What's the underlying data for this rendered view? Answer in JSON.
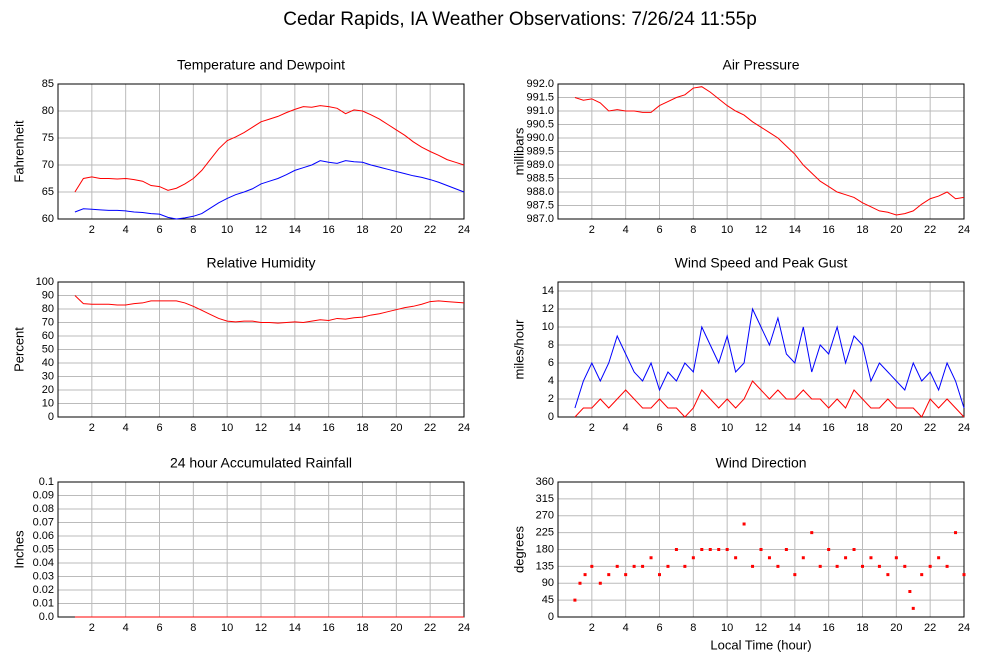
{
  "title": "Cedar Rapids, IA Weather Observations: 7/26/24 11:55p",
  "chart_data": [
    {
      "type": "line",
      "title": "Temperature and Dewpoint",
      "ylabel": "Fahrenheit",
      "x": [
        1,
        1.5,
        2,
        2.5,
        3,
        3.5,
        4,
        4.5,
        5,
        5.5,
        6,
        6.5,
        7,
        7.5,
        8,
        8.5,
        9,
        9.5,
        10,
        10.5,
        11,
        11.5,
        12,
        12.5,
        13,
        13.5,
        14,
        14.5,
        15,
        15.5,
        16,
        16.5,
        17,
        17.5,
        18,
        18.5,
        19,
        19.5,
        20,
        20.5,
        21,
        21.5,
        22,
        22.5,
        23,
        23.5,
        24
      ],
      "series": [
        {
          "color": "#ff0000",
          "values": [
            65,
            67.5,
            67.8,
            67.5,
            67.5,
            67.4,
            67.5,
            67.3,
            67,
            66.2,
            66,
            65.3,
            65.7,
            66.5,
            67.5,
            69,
            71,
            73,
            74.5,
            75.2,
            76,
            77,
            78,
            78.5,
            79,
            79.7,
            80.3,
            80.8,
            80.7,
            81,
            80.8,
            80.5,
            79.5,
            80.2,
            80,
            79.3,
            78.5,
            77.5,
            76.5,
            75.5,
            74.3,
            73.3,
            72.5,
            71.8,
            71,
            70.5,
            70
          ]
        },
        {
          "color": "#0000ff",
          "values": [
            61.3,
            61.9,
            61.8,
            61.7,
            61.6,
            61.6,
            61.5,
            61.3,
            61.2,
            61,
            60.9,
            60.3,
            60,
            60.2,
            60.5,
            61,
            62,
            63,
            63.8,
            64.5,
            65,
            65.6,
            66.5,
            67,
            67.5,
            68.2,
            69,
            69.5,
            70,
            70.8,
            70.5,
            70.3,
            70.8,
            70.6,
            70.5,
            70,
            69.6,
            69.2,
            68.8,
            68.4,
            68,
            67.7,
            67.3,
            66.8,
            66.2,
            65.6,
            65
          ]
        }
      ],
      "xlim": [
        0,
        24
      ],
      "xticks": [
        2,
        4,
        6,
        8,
        10,
        12,
        14,
        16,
        18,
        20,
        22,
        24
      ],
      "ylim": [
        60,
        85
      ],
      "yticks": [
        60,
        65,
        70,
        75,
        80,
        85
      ],
      "grid": true
    },
    {
      "type": "line",
      "title": "Air Pressure",
      "ylabel": "millibars",
      "x": [
        1,
        1.5,
        2,
        2.5,
        3,
        3.5,
        4,
        4.5,
        5,
        5.5,
        6,
        6.5,
        7,
        7.5,
        8,
        8.5,
        9,
        9.5,
        10,
        10.5,
        11,
        11.5,
        12,
        12.5,
        13,
        13.5,
        14,
        14.5,
        15,
        15.5,
        16,
        16.5,
        17,
        17.5,
        18,
        18.5,
        19,
        19.5,
        20,
        20.5,
        21,
        21.5,
        22,
        22.5,
        23,
        23.5,
        24
      ],
      "series": [
        {
          "color": "#ff0000",
          "values": [
            991.5,
            991.4,
            991.45,
            991.3,
            991.0,
            991.05,
            991.0,
            991.0,
            990.95,
            990.95,
            991.2,
            991.35,
            991.5,
            991.6,
            991.85,
            991.9,
            991.7,
            991.45,
            991.2,
            991.0,
            990.85,
            990.6,
            990.4,
            990.2,
            990.0,
            989.7,
            989.4,
            989.0,
            988.7,
            988.4,
            988.2,
            988.0,
            987.9,
            987.8,
            987.6,
            987.45,
            987.3,
            987.25,
            987.15,
            987.2,
            987.3,
            987.55,
            987.75,
            987.85,
            988.0,
            987.75,
            987.8
          ]
        }
      ],
      "xlim": [
        0,
        24
      ],
      "xticks": [
        2,
        4,
        6,
        8,
        10,
        12,
        14,
        16,
        18,
        20,
        22,
        24
      ],
      "ylim": [
        987,
        992
      ],
      "yticks": [
        {
          "value": 987,
          "label": "987.0"
        },
        {
          "value": 987.5,
          "label": "987.5"
        },
        {
          "value": 988,
          "label": "988.0"
        },
        {
          "value": 988.5,
          "label": "988.5"
        },
        {
          "value": 989,
          "label": "989.0"
        },
        {
          "value": 989.5,
          "label": "989.5"
        },
        {
          "value": 990,
          "label": "990.0"
        },
        {
          "value": 990.5,
          "label": "990.5"
        },
        {
          "value": 991,
          "label": "991.0"
        },
        {
          "value": 991.5,
          "label": "991.5"
        },
        {
          "value": 992,
          "label": "992.0"
        }
      ],
      "grid": true
    },
    {
      "type": "line",
      "title": "Relative Humidity",
      "ylabel": "Percent",
      "x": [
        1,
        1.5,
        2,
        2.5,
        3,
        3.5,
        4,
        4.5,
        5,
        5.5,
        6,
        6.5,
        7,
        7.5,
        8,
        8.5,
        9,
        9.5,
        10,
        10.5,
        11,
        11.5,
        12,
        12.5,
        13,
        13.5,
        14,
        14.5,
        15,
        15.5,
        16,
        16.5,
        17,
        17.5,
        18,
        18.5,
        19,
        19.5,
        20,
        20.5,
        21,
        21.5,
        22,
        22.5,
        23,
        23.5,
        24
      ],
      "series": [
        {
          "color": "#ff0000",
          "values": [
            90,
            84,
            83.5,
            83.5,
            83.5,
            83,
            83,
            84,
            84.5,
            86,
            86,
            86,
            86,
            84.5,
            82,
            79,
            76,
            73,
            71,
            70.5,
            71,
            71,
            70,
            70,
            69.5,
            70,
            70.5,
            70,
            71,
            72,
            71.5,
            73,
            72.5,
            73.5,
            74,
            75.5,
            76.5,
            78,
            79.5,
            81,
            82,
            83.5,
            85.5,
            86,
            85.5,
            85,
            84.5
          ]
        }
      ],
      "xlim": [
        0,
        24
      ],
      "xticks": [
        2,
        4,
        6,
        8,
        10,
        12,
        14,
        16,
        18,
        20,
        22,
        24
      ],
      "ylim": [
        0,
        100
      ],
      "yticks": [
        0,
        10,
        20,
        30,
        40,
        50,
        60,
        70,
        80,
        90,
        100
      ],
      "grid": true
    },
    {
      "type": "line",
      "title": "Wind Speed and Peak Gust",
      "ylabel": "miles/hour",
      "x": [
        1,
        1.5,
        2,
        2.5,
        3,
        3.5,
        4,
        4.5,
        5,
        5.5,
        6,
        6.5,
        7,
        7.5,
        8,
        8.5,
        9,
        9.5,
        10,
        10.5,
        11,
        11.5,
        12,
        12.5,
        13,
        13.5,
        14,
        14.5,
        15,
        15.5,
        16,
        16.5,
        17,
        17.5,
        18,
        18.5,
        19,
        19.5,
        20,
        20.5,
        21,
        21.5,
        22,
        22.5,
        23,
        23.5,
        24
      ],
      "series": [
        {
          "color": "#0000ff",
          "values": [
            1,
            4,
            6,
            4,
            6,
            9,
            7,
            5,
            4,
            6,
            3,
            5,
            4,
            6,
            5,
            10,
            8,
            6,
            9,
            5,
            6,
            12,
            10,
            8,
            11,
            7,
            6,
            10,
            5,
            8,
            7,
            10,
            6,
            9,
            8,
            4,
            6,
            5,
            4,
            3,
            6,
            4,
            5,
            3,
            6,
            4,
            1
          ]
        },
        {
          "color": "#ff0000",
          "values": [
            0,
            1,
            1,
            2,
            1,
            2,
            3,
            2,
            1,
            1,
            2,
            1,
            1,
            0,
            1,
            3,
            2,
            1,
            2,
            1,
            2,
            4,
            3,
            2,
            3,
            2,
            2,
            3,
            2,
            2,
            1,
            2,
            1,
            3,
            2,
            1,
            1,
            2,
            1,
            1,
            1,
            0,
            2,
            1,
            2,
            1,
            0
          ]
        }
      ],
      "xlim": [
        0,
        24
      ],
      "xticks": [
        2,
        4,
        6,
        8,
        10,
        12,
        14,
        16,
        18,
        20,
        22,
        24
      ],
      "ylim": [
        0,
        15
      ],
      "yticks": [
        0,
        2,
        4,
        6,
        8,
        10,
        12,
        14
      ],
      "grid": true
    },
    {
      "type": "line",
      "title": "24 hour Accumulated Rainfall",
      "ylabel": "Inches",
      "x": [
        1,
        24
      ],
      "series": [
        {
          "color": "#ff0000",
          "values": [
            0,
            0
          ]
        }
      ],
      "xlim": [
        0,
        24
      ],
      "xticks": [
        2,
        4,
        6,
        8,
        10,
        12,
        14,
        16,
        18,
        20,
        22,
        24
      ],
      "ylim": [
        0,
        0.1
      ],
      "yticks": [
        {
          "value": 0,
          "label": "0.0"
        },
        0.01,
        0.02,
        0.03,
        0.04,
        0.05,
        0.06,
        0.07,
        0.08,
        0.09,
        0.1
      ],
      "grid": true
    },
    {
      "type": "scatter",
      "title": "Wind Direction",
      "ylabel": "degrees",
      "xlabel": "Local Time (hour)",
      "x": [
        1,
        1.3,
        1.6,
        2,
        2.5,
        3,
        3.5,
        4,
        4.5,
        5,
        5.5,
        6,
        6.5,
        7,
        7.5,
        8,
        8.5,
        9,
        9.5,
        10,
        10.5,
        11,
        11.5,
        12,
        12.5,
        13,
        13.5,
        14,
        14.5,
        15,
        15.5,
        16,
        16.5,
        17,
        17.5,
        18,
        18.5,
        19,
        19.5,
        20,
        20.5,
        20.8,
        21,
        21.5,
        22,
        22.5,
        23,
        23.5,
        24
      ],
      "series": [
        {
          "color": "#ff0000",
          "values": [
            45,
            90,
            113,
            135,
            90,
            113,
            135,
            113,
            135,
            135,
            158,
            113,
            135,
            180,
            135,
            158,
            180,
            180,
            180,
            180,
            158,
            248,
            135,
            180,
            158,
            135,
            180,
            113,
            158,
            225,
            135,
            180,
            135,
            158,
            180,
            135,
            158,
            135,
            113,
            158,
            135,
            68,
            23,
            113,
            135,
            158,
            135,
            225,
            113
          ]
        }
      ],
      "xlim": [
        0,
        24
      ],
      "xticks": [
        2,
        4,
        6,
        8,
        10,
        12,
        14,
        16,
        18,
        20,
        22,
        24
      ],
      "ylim": [
        0,
        360
      ],
      "yticks": [
        0,
        45,
        90,
        135,
        180,
        225,
        270,
        315,
        360
      ],
      "grid": true
    }
  ]
}
